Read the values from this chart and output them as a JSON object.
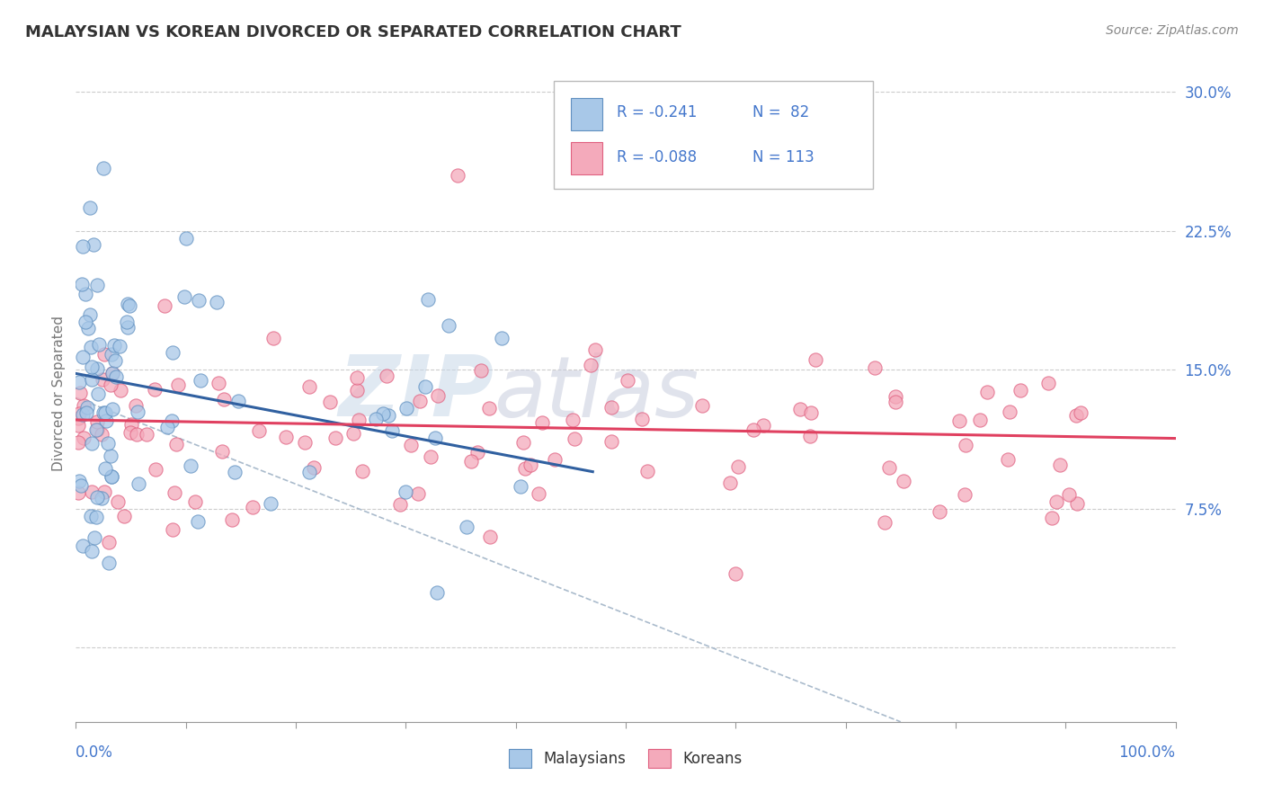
{
  "title": "MALAYSIAN VS KOREAN DIVORCED OR SEPARATED CORRELATION CHART",
  "source_text": "Source: ZipAtlas.com",
  "ylabel": "Divorced or Separated",
  "ytick_labels": [
    "",
    "7.5%",
    "15.0%",
    "22.5%",
    "30.0%"
  ],
  "ytick_values": [
    0.0,
    0.075,
    0.15,
    0.225,
    0.3
  ],
  "legend_r1": "R = -0.241",
  "legend_n1": "N =  82",
  "legend_r2": "R = -0.088",
  "legend_n2": "N = 113",
  "blue_color": "#A8C8E8",
  "pink_color": "#F4AABB",
  "blue_edge_color": "#6090C0",
  "pink_edge_color": "#E06080",
  "blue_line_color": "#3060A0",
  "pink_line_color": "#E04060",
  "watermark_zip": "ZIP",
  "watermark_atlas": "atlas",
  "bg_color": "#FFFFFF",
  "grid_color": "#CCCCCC",
  "blue_line_x0": 0.0,
  "blue_line_y0": 0.148,
  "blue_line_x1": 47.0,
  "blue_line_y1": 0.095,
  "pink_line_x0": 0.0,
  "pink_line_y0": 0.123,
  "pink_line_x1": 100.0,
  "pink_line_y1": 0.113,
  "dash_line_x0": 0.0,
  "dash_line_y0": 0.135,
  "dash_line_x1": 75.0,
  "dash_line_y1": -0.04,
  "xlim_min": 0.0,
  "xlim_max": 100.0,
  "ylim_min": -0.04,
  "ylim_max": 0.315
}
